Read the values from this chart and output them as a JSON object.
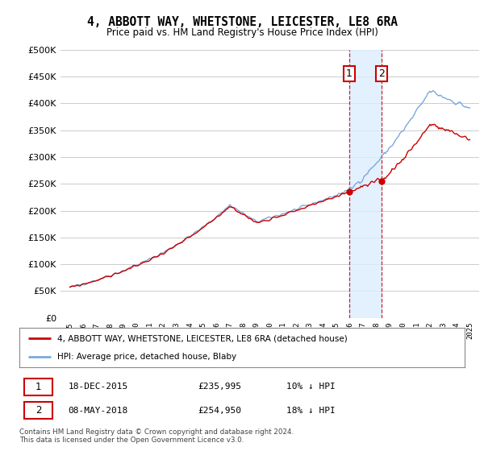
{
  "title": "4, ABBOTT WAY, WHETSTONE, LEICESTER, LE8 6RA",
  "subtitle": "Price paid vs. HM Land Registry's House Price Index (HPI)",
  "ylim": [
    0,
    500000
  ],
  "yticks": [
    0,
    50000,
    100000,
    150000,
    200000,
    250000,
    300000,
    350000,
    400000,
    450000,
    500000
  ],
  "sale1_year": 2015.96,
  "sale1_price": 235995,
  "sale2_year": 2018.37,
  "sale2_price": 254950,
  "hpi_color": "#7aaadd",
  "price_color": "#cc0000",
  "span_color": "#ddeeff",
  "legend_entry1": "4, ABBOTT WAY, WHETSTONE, LEICESTER, LE8 6RA (detached house)",
  "legend_entry2": "HPI: Average price, detached house, Blaby",
  "footer": "Contains HM Land Registry data © Crown copyright and database right 2024.\nThis data is licensed under the Open Government Licence v3.0.",
  "background_color": "#ffffff",
  "xstart": 1995,
  "xend": 2025
}
